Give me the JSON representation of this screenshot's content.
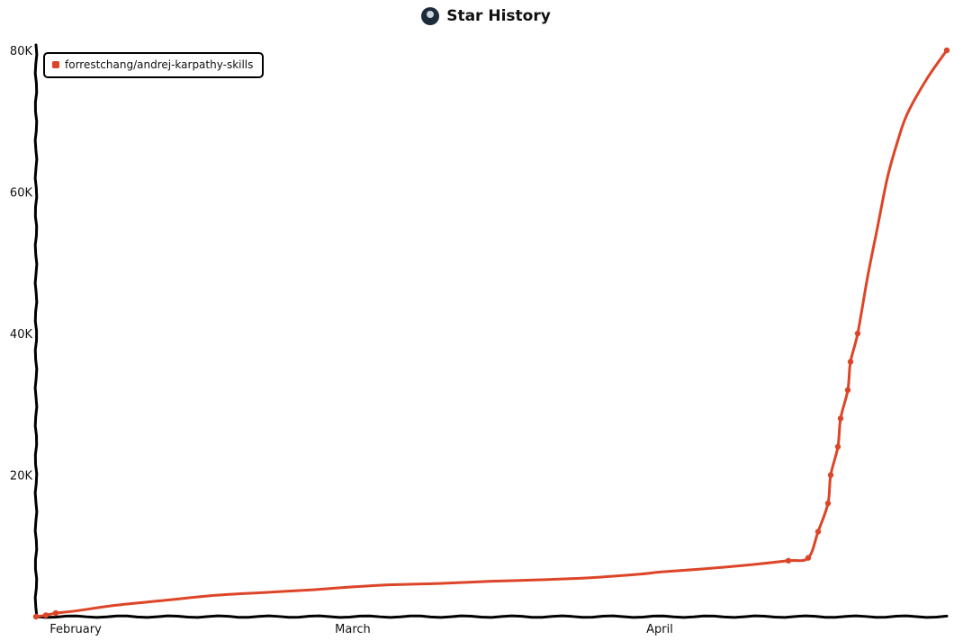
{
  "chart_data": {
    "type": "line",
    "title": "Star History",
    "series": [
      {
        "name": "forrestchang/andrej-karpathy-skills",
        "color": "#dd4528",
        "x": [
          "2026-01-28",
          "2026-01-29",
          "2026-01-30",
          "2026-02-01",
          "2026-02-05",
          "2026-02-10",
          "2026-02-15",
          "2026-02-20",
          "2026-02-25",
          "2026-03-01",
          "2026-03-05",
          "2026-03-10",
          "2026-03-15",
          "2026-03-20",
          "2026-03-25",
          "2026-03-30",
          "2026-04-01",
          "2026-04-05",
          "2026-04-10",
          "2026-04-14",
          "2026-04-16",
          "2026-04-17",
          "2026-04-18",
          "2026-04-18",
          "2026-04-19",
          "2026-04-19",
          "2026-04-20",
          "2026-04-20",
          "2026-04-21",
          "2026-04-22",
          "2026-04-23",
          "2026-04-24",
          "2026-04-25",
          "2026-04-26",
          "2026-04-28",
          "2026-04-30"
        ],
        "y": [
          0,
          200,
          500,
          800,
          1600,
          2300,
          3000,
          3400,
          3800,
          4200,
          4500,
          4700,
          5000,
          5200,
          5500,
          6000,
          6300,
          6700,
          7300,
          7900,
          8300,
          12000,
          16000,
          20000,
          24000,
          28000,
          32000,
          36000,
          40000,
          48000,
          55000,
          62000,
          67000,
          71000,
          76000,
          80000
        ]
      }
    ],
    "x_ticks": [
      "February",
      "March",
      "April"
    ],
    "y_ticks": [
      "20K",
      "40K",
      "60K",
      "80K"
    ],
    "xlim": [
      "2026-01-28",
      "2026-04-30"
    ],
    "ylim": [
      0,
      80000
    ],
    "legend_position": "top-left",
    "grid": false
  }
}
